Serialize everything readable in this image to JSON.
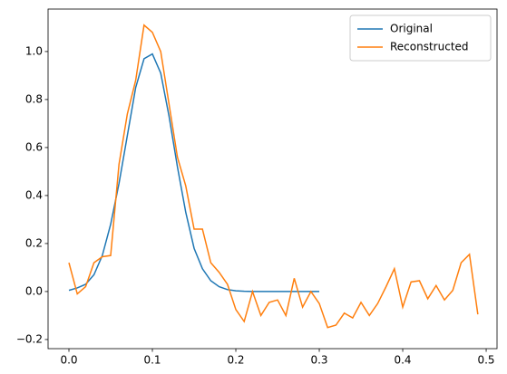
{
  "chart_data": {
    "type": "line",
    "xlim": [
      -0.025,
      0.513
    ],
    "ylim": [
      -0.238,
      1.177
    ],
    "xticks": [
      {
        "value": 0,
        "label": "0.0"
      },
      0.1,
      0.2,
      0.3,
      0.4,
      0.5
    ],
    "yticks": [
      {
        "value": -0.2,
        "label": "−0.2"
      },
      {
        "value": 0,
        "label": "0.0"
      },
      0.2,
      0.4,
      0.6,
      0.8,
      {
        "value": 1,
        "label": "1.0"
      }
    ],
    "legend": "upper right",
    "series": [
      {
        "name": "Original",
        "color": "#1f77b4",
        "x": [
          0,
          0.01,
          0.02,
          0.03,
          0.04,
          0.05,
          0.06,
          0.07,
          0.08,
          0.09,
          0.1,
          0.11,
          0.12,
          0.13,
          0.14,
          0.15,
          0.16,
          0.17,
          0.18,
          0.19,
          0.2,
          0.21,
          0.22,
          0.23,
          0.24,
          0.25,
          0.26,
          0.27,
          0.28,
          0.29,
          0.3
        ],
        "values": [
          0.005,
          0.015,
          0.03,
          0.07,
          0.15,
          0.28,
          0.45,
          0.65,
          0.85,
          0.97,
          0.99,
          0.91,
          0.73,
          0.52,
          0.33,
          0.18,
          0.095,
          0.045,
          0.02,
          0.008,
          0.003,
          0.001,
          0,
          0,
          0,
          0,
          0,
          0,
          0,
          0,
          0
        ]
      },
      {
        "name": "Reconstructed",
        "color": "#ff7f0e",
        "x": [
          0,
          0.01,
          0.02,
          0.03,
          0.04,
          0.05,
          0.06,
          0.07,
          0.08,
          0.09,
          0.1,
          0.11,
          0.12,
          0.13,
          0.14,
          0.15,
          0.16,
          0.17,
          0.18,
          0.19,
          0.2,
          0.21,
          0.22,
          0.23,
          0.24,
          0.25,
          0.26,
          0.27,
          0.28,
          0.29,
          0.3,
          0.31,
          0.32,
          0.33,
          0.34,
          0.35,
          0.36,
          0.37,
          0.38,
          0.39,
          0.4,
          0.41,
          0.42,
          0.43,
          0.44,
          0.45,
          0.46,
          0.47,
          0.48,
          0.49
        ],
        "values": [
          0.12,
          -0.01,
          0.02,
          0.12,
          0.145,
          0.15,
          0.53,
          0.74,
          0.88,
          1.11,
          1.08,
          1.0,
          0.78,
          0.56,
          0.44,
          0.26,
          0.26,
          0.12,
          0.08,
          0.03,
          -0.075,
          -0.125,
          0.0,
          -0.1,
          -0.045,
          -0.035,
          -0.1,
          0.055,
          -0.065,
          0.0,
          -0.05,
          -0.15,
          -0.14,
          -0.09,
          -0.11,
          -0.045,
          -0.1,
          -0.05,
          0.02,
          0.095,
          -0.065,
          0.04,
          0.045,
          -0.03,
          0.025,
          -0.035,
          0.005,
          0.12,
          0.155,
          -0.095
        ]
      }
    ]
  }
}
